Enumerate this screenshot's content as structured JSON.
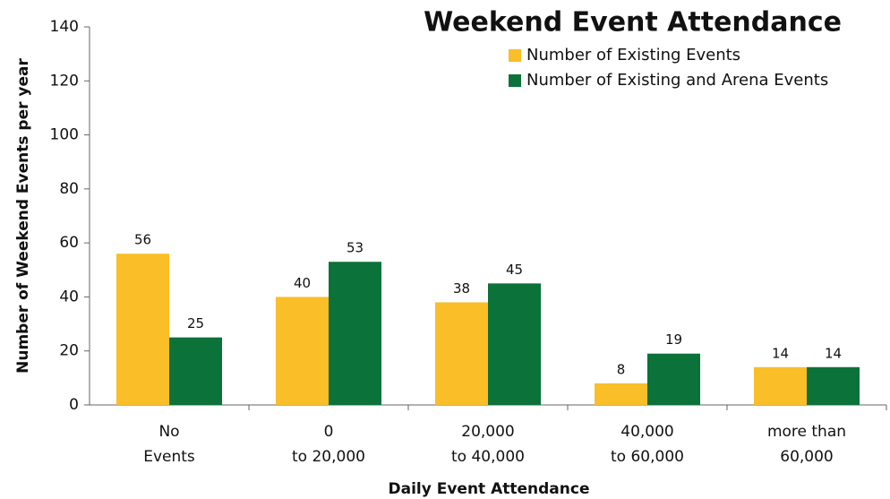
{
  "chart_data": {
    "type": "bar",
    "title": "Weekend Event Attendance",
    "x_label": "Daily Event Attendance",
    "y_label": "Number of Weekend Events per year",
    "categories": [
      [
        "No",
        "Events"
      ],
      [
        "0",
        "to 20,000"
      ],
      [
        "20,000",
        "to 40,000"
      ],
      [
        "40,000",
        "to 60,000"
      ],
      [
        "more than",
        "60,000"
      ]
    ],
    "series": [
      {
        "name": "Number of Existing Events",
        "color": "#f9be28",
        "values": [
          56,
          40,
          38,
          8,
          14
        ]
      },
      {
        "name": "Number of Existing and Arena Events",
        "color": "#0b7239",
        "values": [
          25,
          53,
          45,
          19,
          14
        ]
      }
    ],
    "ylim": [
      0,
      140
    ],
    "yticks": [
      0,
      20,
      40,
      60,
      80,
      100,
      120,
      140
    ],
    "grid": false,
    "legend": "upper right"
  }
}
